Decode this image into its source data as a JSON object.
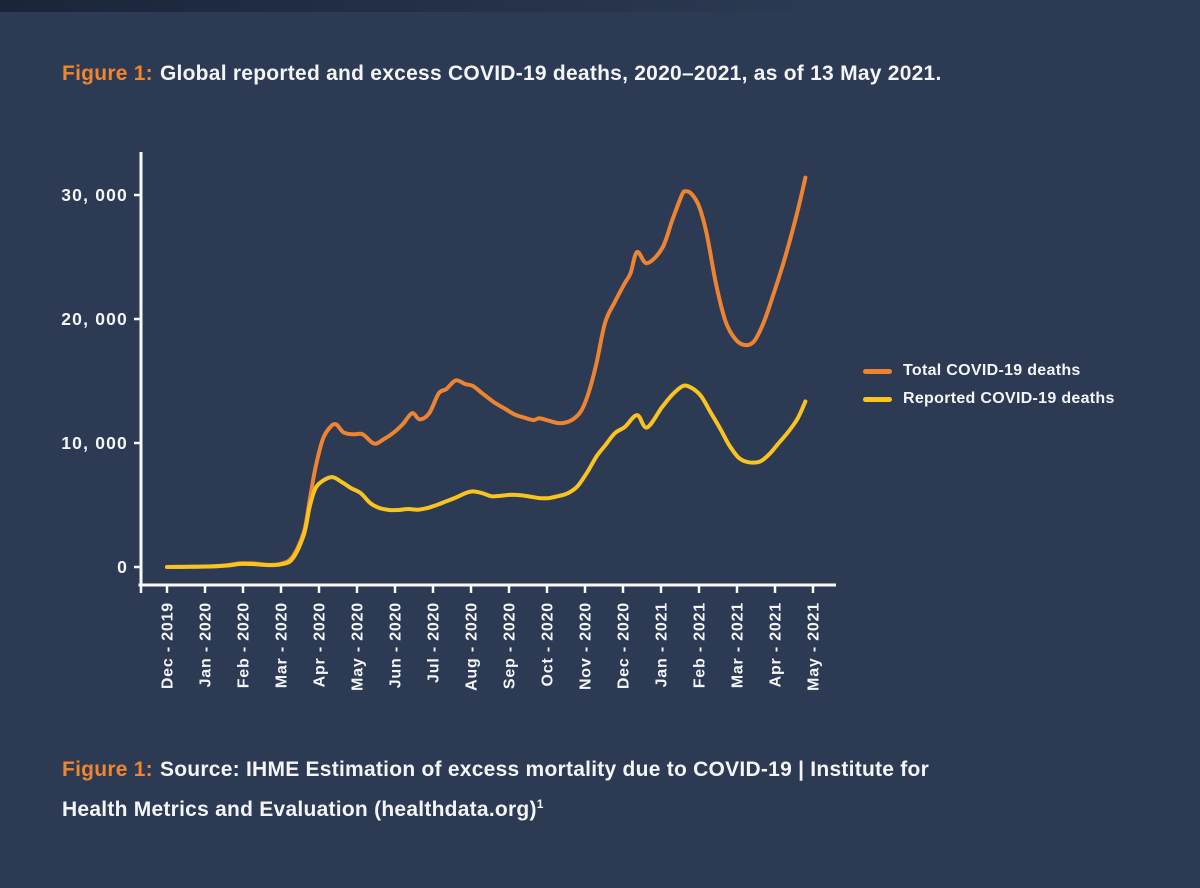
{
  "figure": {
    "title_prefix": "Figure 1:",
    "title_text": "Global reported and excess COVID-19 deaths, 2020–2021, as of 13 May 2021."
  },
  "caption": {
    "prefix": "Figure 1:",
    "line1": "Source: IHME Estimation of excess mortality due to COVID-19 | Institute for",
    "line2": "Health Metrics and Evaluation (healthdata.org)",
    "footnote_marker": "1"
  },
  "colors": {
    "background": "#2C3A53",
    "axis": "#F7F9FB",
    "text": "#F3F5F8",
    "accent_orange": "#F0862D",
    "series_total": "#EE8431",
    "series_reported": "#F9C41F"
  },
  "chart_data": {
    "type": "line",
    "title": "Global reported and excess COVID-19 deaths, 2020–2021, as of 13 May 2021.",
    "xlabel": "",
    "ylabel": "",
    "grid": false,
    "legend_position": "right-middle",
    "x_unit": "month index (0 = Dec - 2019 tick, 1 tick per month)",
    "categories": [
      "Dec - 2019",
      "Jan - 2020",
      "Feb - 2020",
      "Mar - 2020",
      "Apr - 2020",
      "May - 2020",
      "Jun - 2020",
      "Jul - 2020",
      "Aug - 2020",
      "Sep - 2020",
      "Oct - 2020",
      "Nov - 2020",
      "Dec - 2020",
      "Jan - 2021",
      "Feb - 2021",
      "Mar - 2021",
      "Apr - 2021",
      "May - 2021"
    ],
    "y_ticks": [
      {
        "value": 0,
        "label": "0"
      },
      {
        "value": 10000,
        "label": "10, 000"
      },
      {
        "value": 20000,
        "label": "20, 000"
      },
      {
        "value": 30000,
        "label": "30, 000"
      }
    ],
    "ylim": [
      0,
      32000
    ],
    "series": [
      {
        "name": "Total COVID-19 deaths",
        "color": "#EE8431",
        "points": [
          [
            0,
            0
          ],
          [
            0.4,
            10
          ],
          [
            0.8,
            30
          ],
          [
            1.2,
            60
          ],
          [
            1.6,
            150
          ],
          [
            1.95,
            300
          ],
          [
            2.3,
            280
          ],
          [
            2.65,
            180
          ],
          [
            3.0,
            260
          ],
          [
            3.3,
            800
          ],
          [
            3.6,
            2800
          ],
          [
            3.75,
            5300
          ],
          [
            3.9,
            7900
          ],
          [
            4.1,
            10300
          ],
          [
            4.3,
            11300
          ],
          [
            4.45,
            11500
          ],
          [
            4.65,
            10850
          ],
          [
            4.9,
            10700
          ],
          [
            5.15,
            10700
          ],
          [
            5.45,
            9950
          ],
          [
            5.7,
            10300
          ],
          [
            5.95,
            10800
          ],
          [
            6.2,
            11500
          ],
          [
            6.45,
            12400
          ],
          [
            6.65,
            11900
          ],
          [
            6.9,
            12400
          ],
          [
            7.15,
            14000
          ],
          [
            7.35,
            14350
          ],
          [
            7.6,
            15050
          ],
          [
            7.85,
            14750
          ],
          [
            8.05,
            14600
          ],
          [
            8.3,
            14000
          ],
          [
            8.6,
            13300
          ],
          [
            8.9,
            12750
          ],
          [
            9.15,
            12300
          ],
          [
            9.45,
            12000
          ],
          [
            9.65,
            11850
          ],
          [
            9.8,
            12000
          ],
          [
            10.05,
            11800
          ],
          [
            10.35,
            11600
          ],
          [
            10.65,
            11850
          ],
          [
            10.9,
            12600
          ],
          [
            11.1,
            14100
          ],
          [
            11.3,
            16400
          ],
          [
            11.53,
            19700
          ],
          [
            11.79,
            21400
          ],
          [
            12.05,
            22900
          ],
          [
            12.2,
            23700
          ],
          [
            12.37,
            25400
          ],
          [
            12.63,
            24500
          ],
          [
            13.03,
            25700
          ],
          [
            13.3,
            28000
          ],
          [
            13.55,
            30000
          ],
          [
            13.65,
            30300
          ],
          [
            13.8,
            30100
          ],
          [
            14.0,
            29100
          ],
          [
            14.2,
            26900
          ],
          [
            14.45,
            22800
          ],
          [
            14.7,
            19800
          ],
          [
            14.95,
            18400
          ],
          [
            15.2,
            17900
          ],
          [
            15.45,
            18200
          ],
          [
            15.7,
            19700
          ],
          [
            15.95,
            21900
          ],
          [
            16.2,
            24300
          ],
          [
            16.45,
            27000
          ],
          [
            16.65,
            29400
          ],
          [
            16.8,
            31400
          ]
        ]
      },
      {
        "name": "Reported COVID-19 deaths",
        "color": "#F9C41F",
        "points": [
          [
            0,
            0
          ],
          [
            0.4,
            10
          ],
          [
            0.8,
            25
          ],
          [
            1.2,
            50
          ],
          [
            1.6,
            120
          ],
          [
            1.95,
            250
          ],
          [
            2.3,
            230
          ],
          [
            2.65,
            150
          ],
          [
            3.0,
            220
          ],
          [
            3.3,
            650
          ],
          [
            3.6,
            2600
          ],
          [
            3.75,
            4800
          ],
          [
            3.9,
            6300
          ],
          [
            4.1,
            6950
          ],
          [
            4.35,
            7250
          ],
          [
            4.6,
            6850
          ],
          [
            4.85,
            6350
          ],
          [
            5.1,
            5950
          ],
          [
            5.35,
            5150
          ],
          [
            5.6,
            4750
          ],
          [
            5.85,
            4600
          ],
          [
            6.1,
            4600
          ],
          [
            6.35,
            4680
          ],
          [
            6.6,
            4620
          ],
          [
            6.85,
            4750
          ],
          [
            7.1,
            5000
          ],
          [
            7.35,
            5300
          ],
          [
            7.6,
            5600
          ],
          [
            7.85,
            5950
          ],
          [
            8.05,
            6100
          ],
          [
            8.3,
            5950
          ],
          [
            8.55,
            5700
          ],
          [
            8.8,
            5750
          ],
          [
            9.05,
            5820
          ],
          [
            9.3,
            5780
          ],
          [
            9.55,
            5680
          ],
          [
            9.8,
            5560
          ],
          [
            10.05,
            5560
          ],
          [
            10.3,
            5720
          ],
          [
            10.55,
            5950
          ],
          [
            10.8,
            6500
          ],
          [
            11.05,
            7600
          ],
          [
            11.3,
            8900
          ],
          [
            11.53,
            9800
          ],
          [
            11.79,
            10800
          ],
          [
            12.05,
            11300
          ],
          [
            12.37,
            12250
          ],
          [
            12.63,
            11250
          ],
          [
            13.03,
            12900
          ],
          [
            13.3,
            13900
          ],
          [
            13.58,
            14600
          ],
          [
            13.8,
            14450
          ],
          [
            14.05,
            13800
          ],
          [
            14.3,
            12500
          ],
          [
            14.55,
            11200
          ],
          [
            14.8,
            9800
          ],
          [
            15.05,
            8800
          ],
          [
            15.3,
            8450
          ],
          [
            15.6,
            8500
          ],
          [
            15.85,
            9100
          ],
          [
            16.1,
            10000
          ],
          [
            16.35,
            10900
          ],
          [
            16.6,
            12000
          ],
          [
            16.8,
            13350
          ]
        ]
      }
    ]
  }
}
